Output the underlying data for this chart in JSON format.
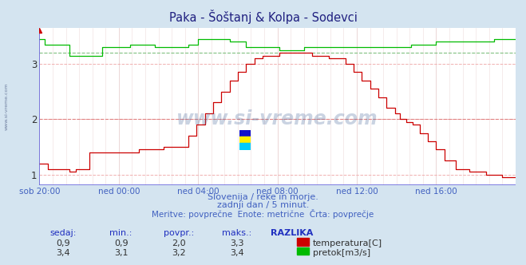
{
  "title": "Paka - Šoštanj & Kolpa - Sodevci",
  "bg_color": "#d4e4f0",
  "plot_bg_color": "#ffffff",
  "text_color": "#4060c0",
  "subtitle1": "Slovenija / reke in morje.",
  "subtitle2": "zadnji dan / 5 minut.",
  "subtitle3": "Meritve: povprečne  Enote: metrične  Črta: povprečje",
  "xtick_labels": [
    "sob 20:00",
    "ned 00:00",
    "ned 04:00",
    "ned 08:00",
    "ned 12:00",
    "ned 16:00"
  ],
  "xtick_positions": [
    0,
    48,
    96,
    144,
    192,
    240
  ],
  "n_points": 289,
  "ylim": [
    0.8,
    3.65
  ],
  "yticks": [
    1.0,
    2.0,
    3.0
  ],
  "temp_color": "#cc0000",
  "flow_color": "#00bb00",
  "avg_temp": 2.0,
  "avg_flow": 3.2,
  "table_headers": [
    "sedaj:",
    "min.:",
    "povpr.:",
    "maks.:",
    "RAZLIKA"
  ],
  "table_row1": [
    "0,9",
    "0,9",
    "2,0",
    "3,3"
  ],
  "table_row2": [
    "3,4",
    "3,1",
    "3,2",
    "3,4"
  ],
  "legend_label1": "temperatura[C]",
  "legend_label2": "pretok[m3/s]",
  "watermark": "www.si-vreme.com",
  "sidebar_text": "www.si-vreme.com",
  "grid_h_color": "#f0b0b0",
  "grid_v_color": "#e8d0d0",
  "avg_temp_color": "#e08080",
  "avg_flow_color": "#80c080"
}
